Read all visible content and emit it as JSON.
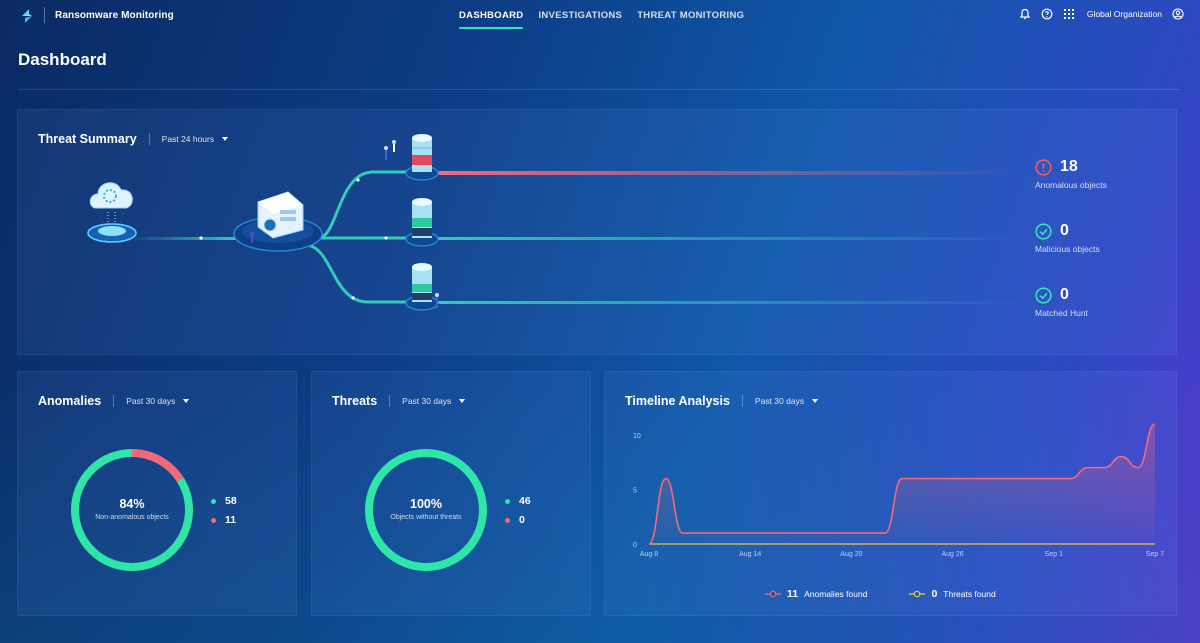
{
  "app": {
    "title": "Ransomware Monitoring"
  },
  "nav": {
    "items": [
      {
        "label": "DASHBOARD",
        "active": true
      },
      {
        "label": "INVESTIGATIONS",
        "active": false
      },
      {
        "label": "THREAT MONITORING",
        "active": false
      }
    ]
  },
  "topbar": {
    "icons": [
      "bell-icon",
      "help-icon",
      "apps-grid-icon"
    ],
    "org_label": "Global Organization",
    "org_icon": "user-circle-icon"
  },
  "page": {
    "title": "Dashboard"
  },
  "threat_summary": {
    "title": "Threat Summary",
    "range": "Past 24 hours",
    "stats": [
      {
        "value": "18",
        "label": "Anomalous objects",
        "icon": "alert-circle-icon",
        "color": "#f15b66"
      },
      {
        "value": "0",
        "label": "Malicious objects",
        "icon": "check-circle-icon",
        "color": "#2ee6b9"
      },
      {
        "value": "0",
        "label": "Matched Hunt",
        "icon": "check-circle-icon",
        "color": "#2ee6b9"
      }
    ]
  },
  "anomalies": {
    "title": "Anomalies",
    "range": "Past 30 days",
    "percent": "84%",
    "center_label": "Non-anomalous objects",
    "legend": [
      {
        "value": "58",
        "color": "#2ee6a8"
      },
      {
        "value": "11",
        "color": "#f06a78"
      }
    ],
    "fraction_good": 0.84
  },
  "threats": {
    "title": "Threats",
    "range": "Past 30 days",
    "percent": "100%",
    "center_label": "Objects without threats",
    "legend": [
      {
        "value": "46",
        "color": "#2ee6a8"
      },
      {
        "value": "0",
        "color": "#f06a78"
      }
    ],
    "fraction_good": 1.0
  },
  "timeline": {
    "title": "Timeline Analysis",
    "range": "Past 30 days",
    "legend": [
      {
        "value": "11",
        "label": "Anomalies found",
        "color": "#f06a78"
      },
      {
        "value": "0",
        "label": "Threats found",
        "color": "#f2c14e"
      }
    ]
  },
  "chart_data": {
    "type": "area",
    "y_ticks": [
      "10",
      "5",
      "0"
    ],
    "ylim": [
      0,
      11
    ],
    "x_tick_labels": [
      "Aug 8",
      "Aug 14",
      "Aug 20",
      "Aug 26",
      "Sep 1",
      "Sep 7"
    ],
    "x": [
      "Aug 8",
      "Aug 9",
      "Aug 10",
      "Aug 11",
      "Aug 12",
      "Aug 13",
      "Aug 14",
      "Aug 15",
      "Aug 16",
      "Aug 17",
      "Aug 18",
      "Aug 19",
      "Aug 20",
      "Aug 21",
      "Aug 22",
      "Aug 23",
      "Aug 24",
      "Aug 25",
      "Aug 26",
      "Aug 27",
      "Aug 28",
      "Aug 29",
      "Aug 30",
      "Aug 31",
      "Sep 1",
      "Sep 2",
      "Sep 3",
      "Sep 4",
      "Sep 5",
      "Sep 6",
      "Sep 7"
    ],
    "series": [
      {
        "name": "Anomalies found",
        "color": "#f06a78",
        "values": [
          0,
          6,
          1,
          1,
          1,
          1,
          1,
          1,
          1,
          1,
          1,
          1,
          1,
          1,
          1,
          6,
          6,
          6,
          6,
          6,
          6,
          6,
          6,
          6,
          6,
          6,
          7,
          7,
          8,
          7,
          11
        ]
      },
      {
        "name": "Threats found",
        "color": "#f2c14e",
        "values": [
          0,
          0,
          0,
          0,
          0,
          0,
          0,
          0,
          0,
          0,
          0,
          0,
          0,
          0,
          0,
          0,
          0,
          0,
          0,
          0,
          0,
          0,
          0,
          0,
          0,
          0,
          0,
          0,
          0,
          0,
          0
        ]
      }
    ]
  }
}
